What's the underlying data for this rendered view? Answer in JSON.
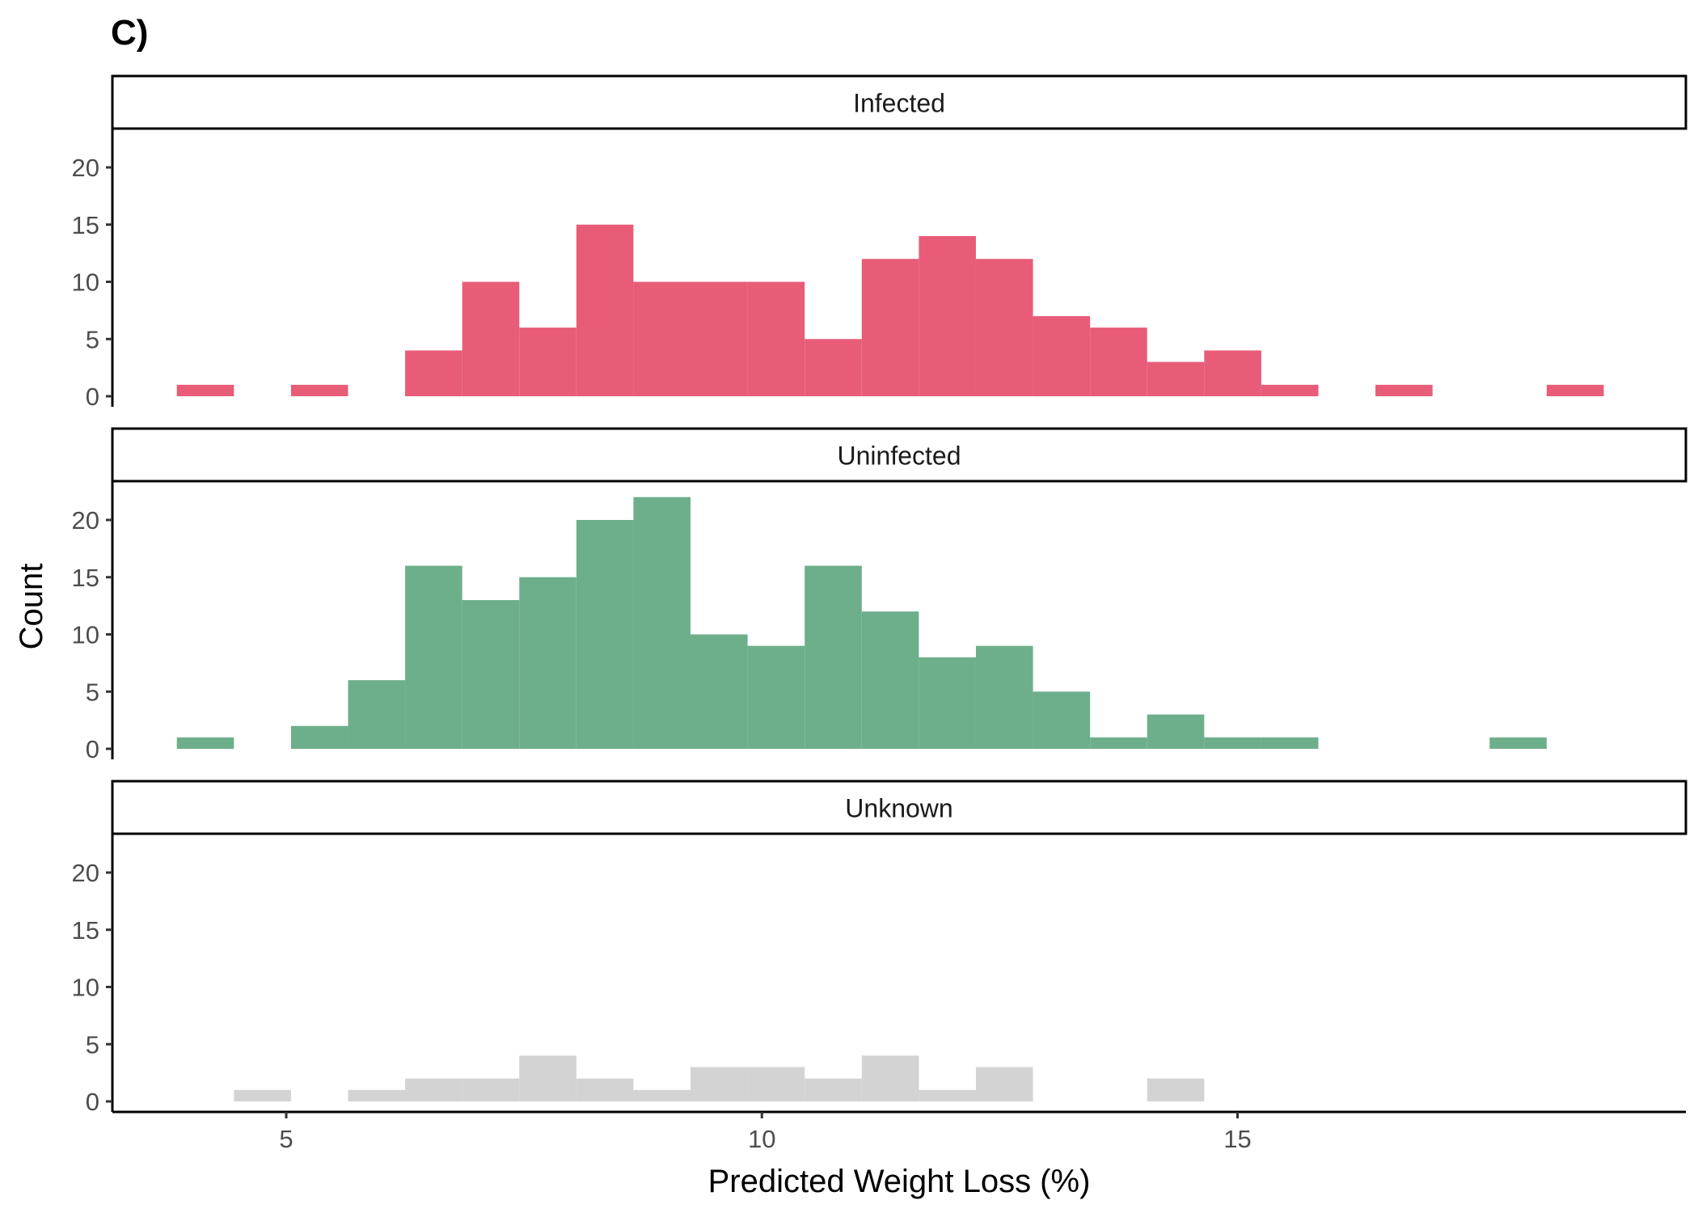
{
  "panel_tag": "C)",
  "colors": {
    "Infected": "#e85c78",
    "Uninfected": "#6daf8b",
    "Unknown": "#d3d3d3",
    "axis": "#000000",
    "tick_text": "#4d4d4d"
  },
  "chart_data": {
    "type": "bar",
    "subtype": "faceted-histogram",
    "xlabel": "Predicted Weight Loss (%)",
    "ylabel": "Count",
    "xlim": [
      3.2,
      19.8
    ],
    "ylim": [
      0,
      23
    ],
    "xticks": [
      5,
      10,
      15
    ],
    "yticks": [
      0,
      5,
      10,
      15,
      20
    ],
    "bins": {
      "start": 3.85,
      "width": 0.6,
      "centers": [
        4.15,
        4.75,
        5.35,
        5.95,
        6.55,
        7.15,
        7.75,
        8.35,
        8.95,
        9.55,
        10.15,
        10.75,
        11.35,
        11.95,
        12.55,
        13.15,
        13.75,
        14.35,
        14.95,
        15.55,
        16.15,
        16.75,
        17.35,
        17.95,
        18.55
      ]
    },
    "grid": false,
    "legend": "none",
    "series": [
      {
        "name": "Infected",
        "values": [
          1,
          0,
          1,
          0,
          4,
          10,
          6,
          15,
          10,
          10,
          10,
          5,
          12,
          14,
          12,
          7,
          6,
          3,
          4,
          1,
          0,
          1,
          0,
          0,
          1
        ]
      },
      {
        "name": "Uninfected",
        "values": [
          1,
          0,
          2,
          6,
          16,
          13,
          15,
          20,
          22,
          10,
          9,
          16,
          12,
          8,
          9,
          5,
          1,
          3,
          1,
          1,
          0,
          0,
          0,
          1,
          0
        ]
      },
      {
        "name": "Unknown",
        "values": [
          0,
          1,
          0,
          1,
          2,
          2,
          4,
          2,
          1,
          3,
          3,
          2,
          4,
          1,
          3,
          0,
          0,
          2,
          0,
          0,
          0,
          0,
          0,
          0,
          0
        ]
      }
    ]
  }
}
